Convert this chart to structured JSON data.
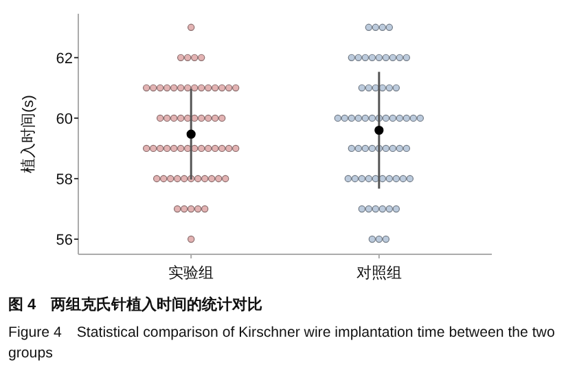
{
  "chart_data": {
    "type": "scatter",
    "title": "图 4　两组克氏针植入时间的统计对比",
    "subtitle": "Figure 4　Statistical comparison of Kirschner wire implantation time between the two groups",
    "ylabel": "植入时间(s)",
    "categories": [
      "实验组",
      "对照组"
    ],
    "ylim": [
      55.5,
      63.45
    ],
    "yticks": [
      56,
      58,
      60,
      62
    ],
    "marker": "circle",
    "grid": false,
    "series": [
      {
        "color": "#e3b3b3",
        "x": [
          "实验组",
          "实验组",
          "实验组",
          "实验组",
          "实验组",
          "实验组",
          "实验组",
          "实验组",
          "实验组",
          "实验组",
          "实验组",
          "实验组",
          "实验组",
          "实验组",
          "实验组",
          "实验组",
          "实验组",
          "实验组",
          "实验组",
          "实验组",
          "实验组",
          "实验组",
          "实验组",
          "实验组",
          "实验组",
          "实验组",
          "实验组",
          "实验组",
          "实验组",
          "实验组",
          "实验组",
          "实验组",
          "实验组",
          "实验组",
          "实验组",
          "实验组",
          "实验组",
          "实验组",
          "实验组",
          "实验组",
          "实验组",
          "实验组",
          "实验组",
          "实验组",
          "实验组",
          "实验组",
          "实验组",
          "实验组",
          "实验组",
          "实验组",
          "实验组",
          "实验组",
          "实验组",
          "实验组",
          "实验组",
          "实验组",
          "实验组",
          "实验组",
          "实验组",
          "实验组"
        ],
        "values": [
          63,
          62,
          62,
          62,
          62,
          61,
          61,
          61,
          61,
          61,
          61,
          61,
          61,
          61,
          61,
          61,
          61,
          61,
          61,
          60,
          60,
          60,
          60,
          60,
          60,
          60,
          60,
          60,
          60,
          59,
          59,
          59,
          59,
          59,
          59,
          59,
          59,
          59,
          59,
          59,
          59,
          59,
          59,
          58,
          58,
          58,
          58,
          58,
          58,
          58,
          58,
          58,
          58,
          58,
          57,
          57,
          57,
          57,
          57,
          56
        ]
      },
      {
        "color": "#bccbdd",
        "x": [
          "对照组",
          "对照组",
          "对照组",
          "对照组",
          "对照组",
          "对照组",
          "对照组",
          "对照组",
          "对照组",
          "对照组",
          "对照组",
          "对照组",
          "对照组",
          "对照组",
          "对照组",
          "对照组",
          "对照组",
          "对照组",
          "对照组",
          "对照组",
          "对照组",
          "对照组",
          "对照组",
          "对照组",
          "对照组",
          "对照组",
          "对照组",
          "对照组",
          "对照组",
          "对照组",
          "对照组",
          "对照组",
          "对照组",
          "对照组",
          "对照组",
          "对照组",
          "对照组",
          "对照组",
          "对照组",
          "对照组",
          "对照组",
          "对照组",
          "对照组",
          "对照组",
          "对照组",
          "对照组",
          "对照组",
          "对照组",
          "对照组",
          "对照组",
          "对照组",
          "对照组",
          "对照组",
          "对照组",
          "对照组",
          "对照组",
          "对照组",
          "对照组",
          "对照组",
          "对照组"
        ],
        "values": [
          63,
          63,
          63,
          63,
          62,
          62,
          62,
          62,
          62,
          62,
          62,
          62,
          62,
          61,
          61,
          61,
          61,
          61,
          61,
          60,
          60,
          60,
          60,
          60,
          60,
          60,
          60,
          60,
          60,
          60,
          60,
          60,
          59,
          59,
          59,
          59,
          59,
          59,
          59,
          59,
          59,
          58,
          58,
          58,
          58,
          58,
          58,
          58,
          58,
          58,
          58,
          57,
          57,
          57,
          57,
          57,
          57,
          56,
          56,
          56
        ]
      },
      {
        "color": "#000000",
        "x": [
          "实验组",
          "对照组"
        ],
        "values": [
          59.47,
          59.6
        ],
        "errors": [
          1.5,
          1.93
        ]
      }
    ]
  }
}
